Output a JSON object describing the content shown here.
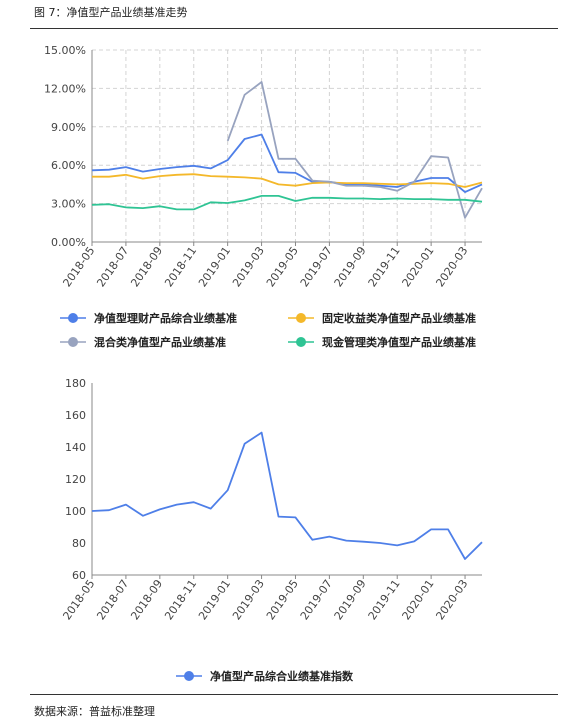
{
  "caption": "图 7：净值型产品业绩基准走势",
  "source": "数据来源：普益标准整理",
  "chart_data": [
    {
      "type": "line",
      "title": "",
      "x": [
        "2018-05",
        "2018-06",
        "2018-07",
        "2018-08",
        "2018-09",
        "2018-10",
        "2018-11",
        "2018-12",
        "2019-01",
        "2019-02",
        "2019-03",
        "2019-04",
        "2019-05",
        "2019-06",
        "2019-07",
        "2019-08",
        "2019-09",
        "2019-10",
        "2019-11",
        "2019-12",
        "2020-01",
        "2020-02",
        "2020-03",
        "2020-04"
      ],
      "x_ticks": [
        "2018-05",
        "2018-07",
        "2018-09",
        "2018-11",
        "2019-01",
        "2019-03",
        "2019-05",
        "2019-07",
        "2019-09",
        "2019-11",
        "2020-01",
        "2020-03"
      ],
      "y_ticks": [
        "0.00%",
        "3.00%",
        "6.00%",
        "9.00%",
        "12.00%",
        "15.00%"
      ],
      "ylim": [
        0,
        15
      ],
      "grid": true,
      "legend_position": "bottom",
      "series": [
        {
          "name": "净值型理财产品综合业绩基准",
          "color": "#4e7fe8",
          "values": [
            5.6,
            5.65,
            5.85,
            5.5,
            5.7,
            5.85,
            5.95,
            5.75,
            6.4,
            8.05,
            8.4,
            5.45,
            5.4,
            4.7,
            4.7,
            4.5,
            4.5,
            4.4,
            4.3,
            4.7,
            5.0,
            5.0,
            3.9,
            4.5
          ]
        },
        {
          "name": "固定收益类净值型产品业绩基准",
          "color": "#f4b82a",
          "values": [
            5.1,
            5.1,
            5.25,
            4.95,
            5.15,
            5.25,
            5.3,
            5.15,
            5.1,
            5.05,
            4.95,
            4.5,
            4.4,
            4.6,
            4.65,
            4.6,
            4.6,
            4.55,
            4.5,
            4.55,
            4.6,
            4.55,
            4.3,
            4.65
          ]
        },
        {
          "name": "混合类净值型产品业绩基准",
          "color": "#98a3bf",
          "values": [
            null,
            null,
            null,
            null,
            null,
            null,
            null,
            null,
            7.9,
            11.5,
            12.5,
            6.5,
            6.5,
            4.8,
            4.7,
            4.4,
            4.4,
            4.3,
            4.0,
            4.7,
            6.7,
            6.6,
            1.9,
            4.2
          ]
        },
        {
          "name": "现金管理类净值型产品业绩基准",
          "color": "#2fc494",
          "values": [
            2.9,
            2.95,
            2.7,
            2.65,
            2.8,
            2.55,
            2.55,
            3.1,
            3.05,
            3.25,
            3.6,
            3.6,
            3.2,
            3.45,
            3.45,
            3.4,
            3.4,
            3.35,
            3.4,
            3.35,
            3.35,
            3.3,
            3.3,
            3.15
          ]
        }
      ]
    },
    {
      "type": "line",
      "title": "",
      "x": [
        "2018-05",
        "2018-06",
        "2018-07",
        "2018-08",
        "2018-09",
        "2018-10",
        "2018-11",
        "2018-12",
        "2019-01",
        "2019-02",
        "2019-03",
        "2019-04",
        "2019-05",
        "2019-06",
        "2019-07",
        "2019-08",
        "2019-09",
        "2019-10",
        "2019-11",
        "2019-12",
        "2020-01",
        "2020-02",
        "2020-03",
        "2020-04"
      ],
      "x_ticks": [
        "2018-05",
        "2018-07",
        "2018-09",
        "2018-11",
        "2019-01",
        "2019-03",
        "2019-05",
        "2019-07",
        "2019-09",
        "2019-11",
        "2020-01",
        "2020-03"
      ],
      "y_ticks": [
        "60",
        "80",
        "100",
        "120",
        "140",
        "160",
        "180"
      ],
      "ylim": [
        60,
        180
      ],
      "grid": false,
      "legend_position": "bottom",
      "series": [
        {
          "name": "净值型产品综合业绩基准指数",
          "color": "#4e7fe8",
          "values": [
            100,
            100.5,
            104,
            97,
            101,
            104,
            105.5,
            101.5,
            113,
            142,
            149,
            96.5,
            96,
            82,
            84,
            81.5,
            80.8,
            80,
            78.5,
            81,
            88.5,
            88.5,
            70,
            80.5
          ]
        }
      ]
    }
  ]
}
